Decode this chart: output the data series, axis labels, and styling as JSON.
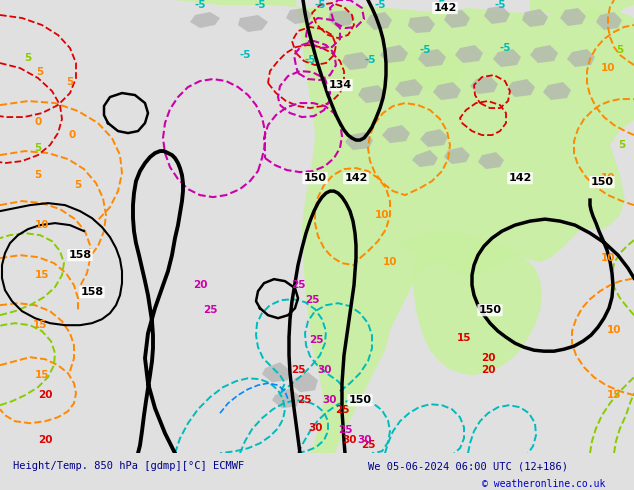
{
  "title_left": "Height/Temp. 850 hPa [gdmp][°C] ECMWF",
  "title_right": "We 05-06-2024 06:00 UTC (12+186)",
  "copyright": "© weatheronline.co.uk",
  "bg_color": "#e0e0e0",
  "map_bg_color": "#e8e8e8",
  "green_fill": "#c8f0a0",
  "gray_land": "#b0b0b0",
  "figsize": [
    6.34,
    4.9
  ],
  "dpi": 100,
  "bottom_bar_color": "#ffffff",
  "title_color": "#00008B",
  "copyright_color": "#0000cc",
  "colors": {
    "black": "#000000",
    "orange": "#FF8800",
    "red": "#DD0000",
    "cyan": "#00BBBB",
    "lime": "#88CC00",
    "magenta": "#CC00AA",
    "dkred": "#990000",
    "blue": "#0000FF"
  }
}
